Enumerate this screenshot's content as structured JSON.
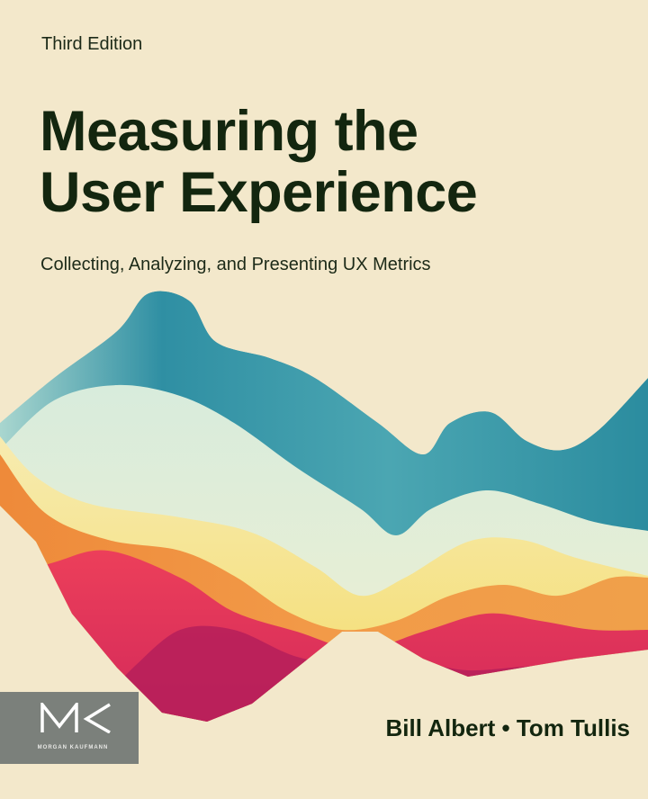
{
  "cover": {
    "edition": "Third Edition",
    "title_line1": "Measuring the",
    "title_line2": "User Experience",
    "subtitle": "Collecting, Analyzing, and Presenting UX Metrics",
    "authors": "Bill Albert • Tom Tullis",
    "publisher_logo": "MK",
    "publisher_name": "MORGAN KAUFMANN"
  },
  "colors": {
    "background": "#f3e8cb",
    "title": "#13260f",
    "teal": "#2a8fa0",
    "yellow": "#f3dc6a",
    "orange": "#ef8a3c",
    "pink": "#e0245a",
    "magenta": "#b51f5b",
    "logo_box": "#7b807b"
  }
}
